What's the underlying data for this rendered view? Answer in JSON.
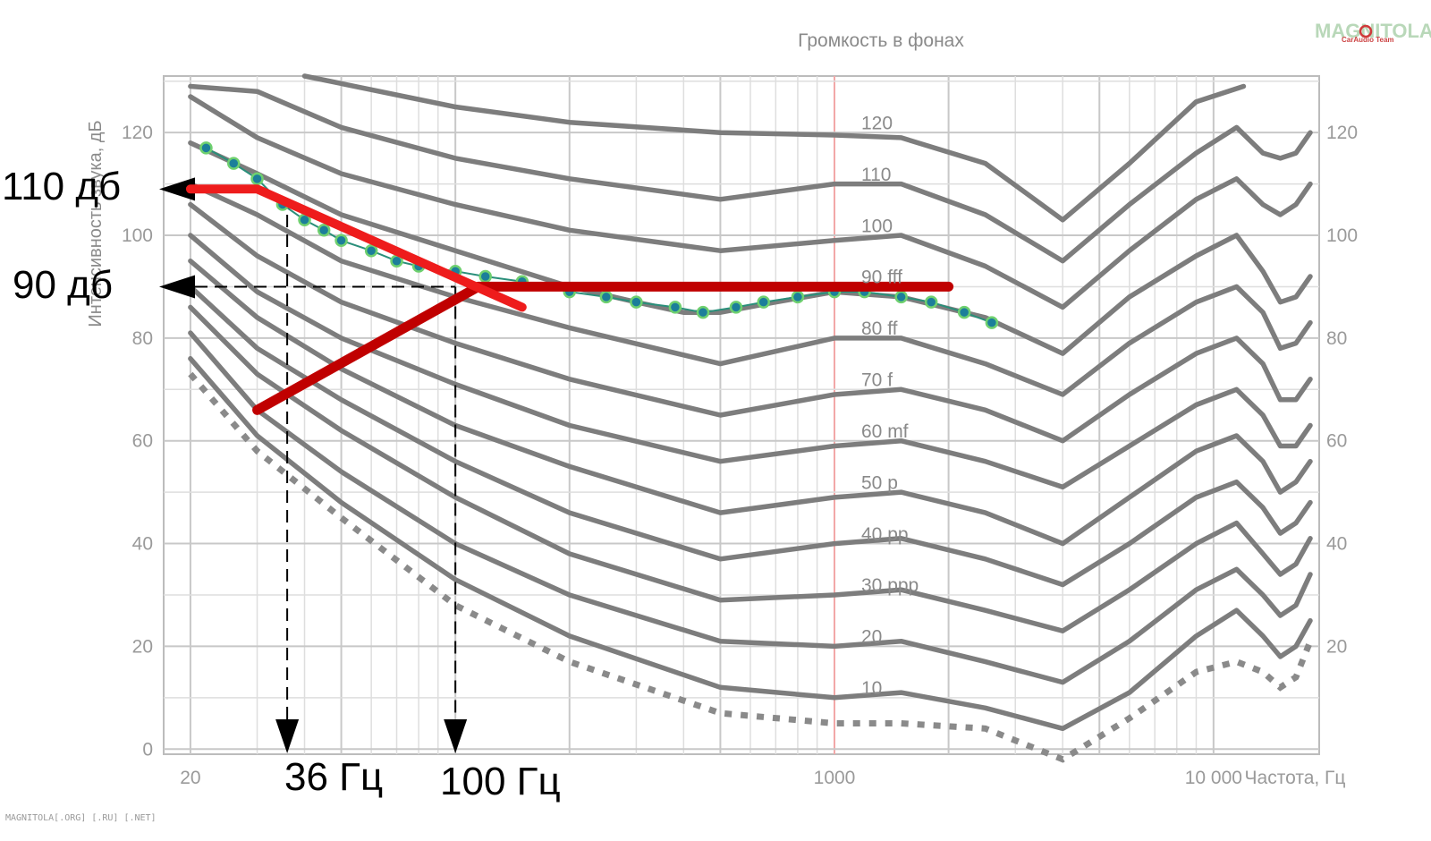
{
  "chart_data": {
    "type": "line",
    "title": "Громкость в фонах",
    "xlabel": "Частота, Гц",
    "ylabel": "Интенсивность звука, дБ",
    "x_scale": "log",
    "xlim": [
      17,
      19000
    ],
    "ylim": [
      -1,
      131
    ],
    "grid": true,
    "x_tick_labels": [
      {
        "value": 20,
        "label": "20",
        "color": "#9a9a9a"
      },
      {
        "value": 1000,
        "label": "1000",
        "color": "#f07070"
      },
      {
        "value": 10000,
        "label": "10 000",
        "color": "#9a9a9a"
      }
    ],
    "y_ticks": [
      0,
      20,
      40,
      60,
      80,
      100,
      120
    ],
    "y_ticks_right": [
      20,
      40,
      60,
      80,
      100,
      120
    ],
    "highlight_x": 1000,
    "curve_color": "#7d7d7d",
    "series": [
      {
        "label": "120",
        "label_at": [
          1000,
          121
        ],
        "points": [
          [
            40,
            131
          ],
          [
            100,
            125
          ],
          [
            200,
            122
          ],
          [
            500,
            120
          ],
          [
            1000,
            119.5
          ],
          [
            1500,
            119
          ],
          [
            2500,
            114
          ],
          [
            4000,
            103
          ],
          [
            6000,
            114
          ],
          [
            9000,
            126
          ],
          [
            12000,
            129
          ]
        ]
      },
      {
        "label": "110",
        "label_at": [
          1000,
          111
        ],
        "points": [
          [
            20,
            129
          ],
          [
            30,
            128
          ],
          [
            50,
            121
          ],
          [
            100,
            115
          ],
          [
            200,
            111
          ],
          [
            500,
            107
          ],
          [
            1000,
            110
          ],
          [
            1500,
            110
          ],
          [
            2500,
            104
          ],
          [
            4000,
            95
          ],
          [
            6000,
            106
          ],
          [
            9000,
            116
          ],
          [
            11500,
            121
          ],
          [
            13500,
            116
          ],
          [
            15000,
            115
          ],
          [
            16500,
            116
          ],
          [
            18000,
            120
          ]
        ]
      },
      {
        "label": "100",
        "label_at": [
          1000,
          101
        ],
        "points": [
          [
            20,
            127
          ],
          [
            30,
            119
          ],
          [
            50,
            112
          ],
          [
            100,
            106
          ],
          [
            200,
            101
          ],
          [
            500,
            97
          ],
          [
            1000,
            99
          ],
          [
            1500,
            100
          ],
          [
            2500,
            94
          ],
          [
            4000,
            86
          ],
          [
            6000,
            97
          ],
          [
            9000,
            107
          ],
          [
            11500,
            111
          ],
          [
            13500,
            106
          ],
          [
            15000,
            104
          ],
          [
            16500,
            106
          ],
          [
            18000,
            110
          ]
        ]
      },
      {
        "label": "90 fff",
        "label_at": [
          1000,
          91
        ],
        "points": [
          [
            20,
            118
          ],
          [
            30,
            112
          ],
          [
            50,
            104
          ],
          [
            100,
            97
          ],
          [
            200,
            90
          ],
          [
            300,
            87
          ],
          [
            400,
            85
          ],
          [
            500,
            85
          ],
          [
            700,
            87
          ],
          [
            1000,
            89
          ],
          [
            1500,
            88
          ],
          [
            2500,
            84
          ],
          [
            4000,
            77
          ],
          [
            6000,
            88
          ],
          [
            9000,
            96
          ],
          [
            11500,
            100
          ],
          [
            13500,
            93
          ],
          [
            15000,
            87
          ],
          [
            16500,
            88
          ],
          [
            18000,
            92
          ]
        ]
      },
      {
        "label": "80 ff",
        "label_at": [
          1000,
          81
        ],
        "points": [
          [
            20,
            110
          ],
          [
            30,
            104
          ],
          [
            50,
            95
          ],
          [
            100,
            88
          ],
          [
            200,
            82
          ],
          [
            500,
            75
          ],
          [
            1000,
            80
          ],
          [
            1500,
            80
          ],
          [
            2500,
            75
          ],
          [
            4000,
            69
          ],
          [
            6000,
            79
          ],
          [
            9000,
            87
          ],
          [
            11500,
            90
          ],
          [
            13500,
            85
          ],
          [
            15000,
            78
          ],
          [
            16500,
            79
          ],
          [
            18000,
            83
          ]
        ]
      },
      {
        "label": "70 f",
        "label_at": [
          1000,
          71
        ],
        "points": [
          [
            20,
            106
          ],
          [
            30,
            96
          ],
          [
            50,
            87
          ],
          [
            100,
            79
          ],
          [
            200,
            72
          ],
          [
            500,
            65
          ],
          [
            1000,
            69
          ],
          [
            1500,
            70
          ],
          [
            2500,
            66
          ],
          [
            4000,
            60
          ],
          [
            6000,
            69
          ],
          [
            9000,
            77
          ],
          [
            11500,
            80
          ],
          [
            13500,
            75
          ],
          [
            15000,
            68
          ],
          [
            16500,
            68
          ],
          [
            18000,
            72
          ]
        ]
      },
      {
        "label": "60 mf",
        "label_at": [
          1000,
          61
        ],
        "points": [
          [
            20,
            100
          ],
          [
            30,
            89
          ],
          [
            50,
            80
          ],
          [
            100,
            71
          ],
          [
            200,
            63
          ],
          [
            500,
            56
          ],
          [
            1000,
            59
          ],
          [
            1500,
            60
          ],
          [
            2500,
            56
          ],
          [
            4000,
            51
          ],
          [
            6000,
            59
          ],
          [
            9000,
            67
          ],
          [
            11500,
            70
          ],
          [
            13500,
            65
          ],
          [
            15000,
            59
          ],
          [
            16500,
            59
          ],
          [
            18000,
            63
          ]
        ]
      },
      {
        "label": "50 p",
        "label_at": [
          1000,
          51
        ],
        "points": [
          [
            20,
            95
          ],
          [
            30,
            84
          ],
          [
            50,
            74
          ],
          [
            100,
            63
          ],
          [
            200,
            55
          ],
          [
            500,
            46
          ],
          [
            1000,
            49
          ],
          [
            1500,
            50
          ],
          [
            2500,
            46
          ],
          [
            4000,
            40
          ],
          [
            6000,
            49
          ],
          [
            9000,
            58
          ],
          [
            11500,
            61
          ],
          [
            13500,
            56
          ],
          [
            15000,
            50
          ],
          [
            16500,
            52
          ],
          [
            18000,
            56
          ]
        ]
      },
      {
        "label": "40 pp",
        "label_at": [
          1000,
          41
        ],
        "points": [
          [
            20,
            90
          ],
          [
            30,
            78
          ],
          [
            50,
            68
          ],
          [
            100,
            56
          ],
          [
            200,
            46
          ],
          [
            500,
            37
          ],
          [
            1000,
            40
          ],
          [
            1500,
            41
          ],
          [
            2500,
            37
          ],
          [
            4000,
            32
          ],
          [
            6000,
            40
          ],
          [
            9000,
            49
          ],
          [
            11500,
            52
          ],
          [
            13500,
            47
          ],
          [
            15000,
            42
          ],
          [
            16500,
            44
          ],
          [
            18000,
            48
          ]
        ]
      },
      {
        "label": "30 ppp",
        "label_at": [
          1000,
          31
        ],
        "points": [
          [
            20,
            86
          ],
          [
            30,
            73
          ],
          [
            50,
            62
          ],
          [
            100,
            49
          ],
          [
            200,
            38
          ],
          [
            500,
            29
          ],
          [
            1000,
            30
          ],
          [
            1500,
            31
          ],
          [
            2500,
            27
          ],
          [
            4000,
            23
          ],
          [
            6000,
            31
          ],
          [
            9000,
            40
          ],
          [
            11500,
            44
          ],
          [
            13500,
            38
          ],
          [
            15000,
            34
          ],
          [
            16500,
            36
          ],
          [
            18000,
            41
          ]
        ]
      },
      {
        "label": "20",
        "label_at": [
          1000,
          21
        ],
        "points": [
          [
            20,
            81
          ],
          [
            30,
            66
          ],
          [
            50,
            54
          ],
          [
            100,
            40
          ],
          [
            200,
            30
          ],
          [
            500,
            21
          ],
          [
            1000,
            20
          ],
          [
            1500,
            21
          ],
          [
            2500,
            17
          ],
          [
            4000,
            13
          ],
          [
            6000,
            21
          ],
          [
            9000,
            31
          ],
          [
            11500,
            35
          ],
          [
            13500,
            30
          ],
          [
            15000,
            26
          ],
          [
            16500,
            28
          ],
          [
            18000,
            34
          ]
        ]
      },
      {
        "label": "10",
        "label_at": [
          1000,
          11
        ],
        "points": [
          [
            20,
            76
          ],
          [
            30,
            61
          ],
          [
            50,
            48
          ],
          [
            100,
            33
          ],
          [
            200,
            22
          ],
          [
            500,
            12
          ],
          [
            1000,
            10
          ],
          [
            1500,
            11
          ],
          [
            2500,
            8
          ],
          [
            4000,
            4
          ],
          [
            6000,
            11
          ],
          [
            9000,
            22
          ],
          [
            11500,
            27
          ],
          [
            13500,
            22
          ],
          [
            15000,
            18
          ],
          [
            16500,
            20
          ],
          [
            18000,
            25
          ]
        ]
      }
    ],
    "threshold": {
      "points": [
        [
          20,
          73
        ],
        [
          30,
          58
        ],
        [
          50,
          45
        ],
        [
          100,
          28
        ],
        [
          200,
          17
        ],
        [
          500,
          7
        ],
        [
          1000,
          5
        ],
        [
          1500,
          5
        ],
        [
          2500,
          4
        ],
        [
          4000,
          -2
        ],
        [
          6000,
          6
        ],
        [
          9000,
          15
        ],
        [
          11500,
          17
        ],
        [
          13500,
          15
        ],
        [
          15000,
          12
        ],
        [
          16500,
          14
        ],
        [
          18000,
          21
        ]
      ]
    },
    "dotted_90": {
      "color": "#2a8f7a",
      "dot_color": "#1c7e9a",
      "points": [
        [
          22,
          117
        ],
        [
          26,
          114
        ],
        [
          30,
          111
        ],
        [
          35,
          106
        ],
        [
          40,
          103
        ],
        [
          45,
          101
        ],
        [
          50,
          99
        ],
        [
          60,
          97
        ],
        [
          70,
          95
        ],
        [
          80,
          94
        ],
        [
          100,
          93
        ],
        [
          120,
          92
        ],
        [
          150,
          91
        ],
        [
          200,
          89
        ],
        [
          250,
          88
        ],
        [
          300,
          87
        ],
        [
          380,
          86
        ],
        [
          450,
          85
        ],
        [
          550,
          86
        ],
        [
          650,
          87
        ],
        [
          800,
          88
        ],
        [
          1000,
          89
        ],
        [
          1200,
          89
        ],
        [
          1500,
          88
        ],
        [
          1800,
          87
        ],
        [
          2200,
          85
        ],
        [
          2600,
          83
        ]
      ]
    },
    "red_line": {
      "color": "#ee1c1c",
      "points": [
        [
          20,
          109
        ],
        [
          30,
          109
        ],
        [
          150,
          86
        ]
      ]
    },
    "darkred_line": {
      "color": "#c00000",
      "points": [
        [
          30,
          66
        ],
        [
          115,
          90
        ],
        [
          2000,
          90
        ]
      ]
    },
    "guides": {
      "y110": 109,
      "y90": 90,
      "x36": 36,
      "x100": 100
    },
    "annotations": {
      "db110": "110 дб",
      "db90": "90 дб",
      "hz36": "36 Гц",
      "hz100": "100 Гц"
    }
  },
  "logo": {
    "main": "MAGNITOLA",
    "sub": "CarAudio Team"
  },
  "watermark": "MAGNITOLA[.ORG] [.RU] [.NET]"
}
